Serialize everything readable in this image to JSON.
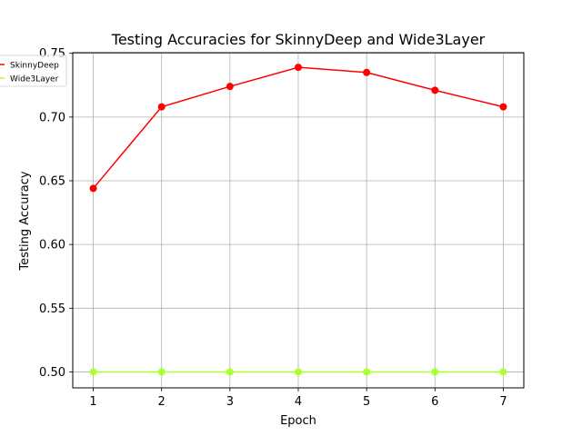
{
  "chart_data": {
    "type": "line",
    "title": "Testing Accuracies for SkinnyDeep and Wide3Layer",
    "xlabel": "Epoch",
    "ylabel": "Testing Accuracy",
    "x": [
      1,
      2,
      3,
      4,
      5,
      6,
      7
    ],
    "xticks": [
      "1",
      "2",
      "3",
      "4",
      "5",
      "6",
      "7"
    ],
    "yticks": [
      "0.50",
      "0.55",
      "0.60",
      "0.65",
      "0.70",
      "0.75"
    ],
    "ytick_values": [
      0.5,
      0.55,
      0.6,
      0.65,
      0.7,
      0.75
    ],
    "xlim": [
      0.7,
      7.3
    ],
    "ylim": [
      0.4875,
      0.7505
    ],
    "grid": true,
    "legend_position": "top-left, outside plot",
    "series": [
      {
        "name": "SkinnyDeep",
        "color": "#ff0000",
        "marker": "circle",
        "values": [
          0.644,
          0.708,
          0.724,
          0.739,
          0.735,
          0.721,
          0.708
        ]
      },
      {
        "name": "Wide3Layer",
        "color": "#adff2f",
        "marker": "circle",
        "values": [
          0.5,
          0.5,
          0.5,
          0.5,
          0.5,
          0.5,
          0.5
        ]
      }
    ]
  }
}
